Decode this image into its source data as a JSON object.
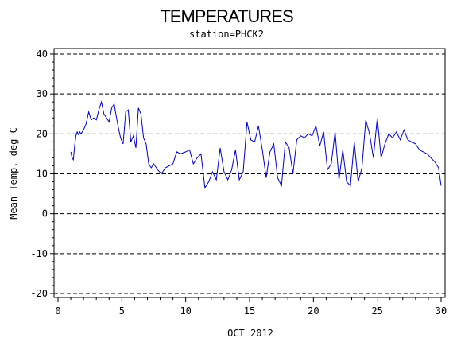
{
  "chart_data": {
    "type": "line",
    "title": "TEMPERATURES",
    "subtitle": "station=PHCK2",
    "xlabel": "OCT 2012",
    "ylabel": "Mean Temp. deg-C",
    "xlim": [
      0,
      30
    ],
    "ylim": [
      -20,
      40
    ],
    "x_ticks": [
      0,
      5,
      10,
      15,
      20,
      25,
      30
    ],
    "y_ticks": [
      40,
      30,
      20,
      10,
      0,
      -10,
      -20
    ],
    "grid": "horizontal dashed at each y tick",
    "series": [
      {
        "color": "#0000cc",
        "x": [
          1.0,
          1.1,
          1.2,
          1.3,
          1.4,
          1.5,
          1.6,
          1.7,
          1.8,
          2.0,
          2.2,
          2.4,
          2.6,
          2.8,
          3.0,
          3.2,
          3.4,
          3.6,
          3.8,
          4.0,
          4.2,
          4.4,
          4.5,
          4.7,
          4.9,
          5.1,
          5.3,
          5.5,
          5.7,
          5.9,
          6.1,
          6.3,
          6.5,
          6.7,
          6.9,
          7.1,
          7.3,
          7.5,
          7.8,
          8.1,
          8.4,
          8.7,
          9.0,
          9.3,
          9.6,
          10.0,
          10.3,
          10.6,
          10.9,
          11.2,
          11.5,
          11.8,
          12.1,
          12.4,
          12.7,
          13.0,
          13.3,
          13.6,
          13.9,
          14.2,
          14.5,
          14.8,
          15.1,
          15.4,
          15.7,
          16.0,
          16.3,
          16.6,
          16.9,
          17.2,
          17.5,
          17.8,
          18.1,
          18.4,
          18.7,
          19.0,
          19.3,
          19.6,
          19.9,
          20.2,
          20.5,
          20.8,
          21.1,
          21.4,
          21.7,
          22.0,
          22.3,
          22.6,
          22.9,
          23.2,
          23.5,
          23.8,
          24.1,
          24.4,
          24.7,
          25.0,
          25.3,
          25.6,
          25.9,
          26.2,
          26.5,
          26.8,
          27.1,
          27.4,
          27.7,
          28.0,
          28.3,
          28.6,
          28.9,
          29.2,
          29.5,
          29.8,
          30.0
        ],
        "y": [
          15.5,
          14.0,
          13.5,
          17.0,
          19.5,
          20.5,
          19.8,
          20.5,
          20.0,
          21.0,
          22.5,
          25.5,
          23.5,
          24.0,
          23.5,
          26.0,
          28.0,
          25.0,
          24.0,
          23.0,
          26.5,
          27.5,
          25.5,
          22.0,
          19.0,
          17.5,
          25.5,
          26.0,
          18.0,
          19.5,
          16.5,
          26.5,
          25.0,
          19.0,
          17.5,
          12.5,
          11.5,
          12.5,
          11.0,
          10.0,
          11.5,
          12.0,
          12.5,
          15.5,
          15.0,
          15.5,
          16.0,
          12.5,
          14.0,
          15.0,
          6.5,
          8.0,
          10.5,
          8.5,
          16.5,
          10.5,
          8.5,
          11.0,
          16.0,
          8.5,
          10.5,
          23.0,
          18.5,
          18.0,
          22.0,
          16.0,
          9.0,
          15.5,
          17.5,
          9.0,
          7.0,
          18.0,
          16.5,
          10.0,
          18.5,
          19.5,
          19.0,
          20.0,
          19.5,
          22.0,
          17.0,
          20.5,
          11.0,
          12.5,
          20.5,
          8.5,
          16.0,
          8.0,
          7.0,
          18.0,
          8.0,
          11.5,
          23.5,
          20.0,
          14.0,
          24.0,
          14.0,
          17.5,
          20.0,
          19.0,
          20.5,
          18.5,
          21.0,
          18.5,
          18.0,
          17.5,
          16.0,
          15.5,
          15.0,
          14.0,
          13.0,
          11.5,
          7.0
        ]
      }
    ]
  }
}
